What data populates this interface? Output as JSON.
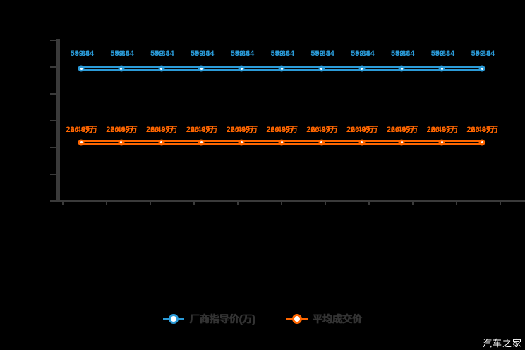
{
  "watermark": "汽车之家",
  "legend": {
    "items": [
      {
        "label": "厂商指导价(万)",
        "color": "#2B9BD8"
      },
      {
        "label": "平均成交价",
        "color": "#FF6600"
      }
    ]
  },
  "chart_data": {
    "type": "line",
    "title": "",
    "xlabel": "",
    "ylabel": "",
    "num_points": 11,
    "x_tick_count": 11,
    "y_tick_count": 7,
    "ylim": [
      0,
      73
    ],
    "legend_position": "bottom",
    "axis_color": "#3A3A3A",
    "grid": false,
    "note": "each series is drawn twice (overlapping duplicate), making labels appear doubled",
    "series": [
      {
        "name": "厂商指导价(万)",
        "color": "#2B9BD8",
        "values": [
          59.84,
          59.84,
          59.84,
          59.84,
          59.84,
          59.84,
          59.84,
          59.84,
          59.84,
          59.84,
          59.84
        ],
        "point_labels": [
          "59.84",
          "59.84",
          "59.84",
          "59.84",
          "59.84",
          "59.84",
          "59.84",
          "59.84",
          "59.84",
          "59.84",
          "59.84"
        ]
      },
      {
        "name": "平均成交价",
        "color": "#FF6600",
        "values": [
          26.49,
          26.49,
          26.49,
          26.49,
          26.49,
          26.49,
          26.49,
          26.49,
          26.49,
          26.49,
          26.49
        ],
        "point_labels": [
          "26.49万",
          "26.49万",
          "26.49万",
          "26.49万",
          "26.49万",
          "26.49万",
          "26.49万",
          "26.49万",
          "26.49万",
          "26.49万",
          "26.49万"
        ]
      }
    ]
  }
}
